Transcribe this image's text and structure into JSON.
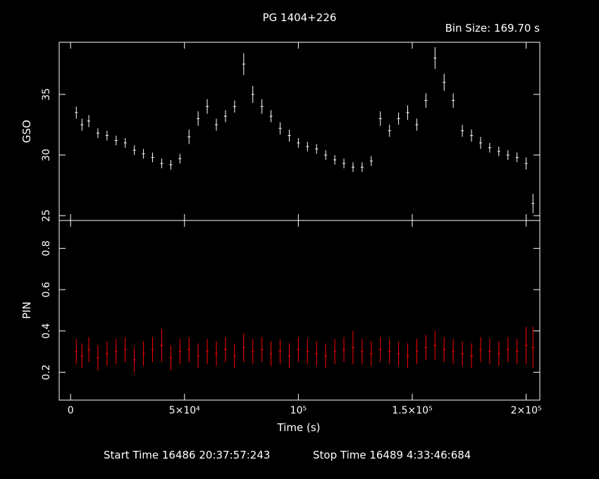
{
  "chart_data": {
    "type": "scatter",
    "title": "PG 1404+226",
    "bin_size_label": "Bin Size: 169.70 s",
    "xlabel": "Time (s)",
    "footer": {
      "start": "Start Time 16486 20:37:57:243",
      "stop": "Stop Time 16489  4:33:46:684"
    },
    "xlim": [
      -5000,
      206000
    ],
    "x_ticks": [
      {
        "value": 0,
        "label": "0"
      },
      {
        "value": 50000,
        "label": "5×10⁴"
      },
      {
        "value": 100000,
        "label": "10⁵"
      },
      {
        "value": 150000,
        "label": "1.5×10⁵"
      },
      {
        "value": 200000,
        "label": "2×10⁵"
      }
    ],
    "panels": [
      {
        "name": "GSO",
        "ylabel": "GSO",
        "color": "#ffffff",
        "ylim": [
          24.6,
          39.3
        ],
        "y_ticks": [
          25,
          30,
          35
        ],
        "series": {
          "x": [
            2500,
            5000,
            8000,
            12000,
            16000,
            20000,
            24000,
            28000,
            32000,
            36000,
            40000,
            44000,
            48000,
            52000,
            56000,
            60000,
            64000,
            68000,
            72000,
            76000,
            80000,
            84000,
            88000,
            92000,
            96000,
            100000,
            104000,
            108000,
            112000,
            116000,
            120000,
            124000,
            128000,
            132000,
            136000,
            140000,
            144000,
            148000,
            152000,
            156000,
            160000,
            164000,
            168000,
            172000,
            176000,
            180000,
            184000,
            188000,
            192000,
            196000,
            200000,
            203000
          ],
          "y": [
            33.5,
            32.5,
            32.8,
            31.8,
            31.6,
            31.2,
            31.0,
            30.4,
            30.1,
            29.8,
            29.3,
            29.2,
            29.7,
            31.5,
            33.0,
            34.0,
            32.5,
            33.2,
            34.0,
            37.5,
            35.0,
            34.0,
            33.2,
            32.2,
            31.6,
            31.0,
            30.7,
            30.5,
            30.0,
            29.6,
            29.3,
            29.0,
            29.0,
            29.5,
            33.0,
            32.0,
            33.0,
            33.5,
            32.5,
            34.5,
            38.0,
            36.0,
            34.5,
            32.0,
            31.6,
            31.0,
            30.6,
            30.3,
            30.0,
            29.8,
            29.3,
            26.0
          ],
          "err": [
            0.5,
            0.5,
            0.5,
            0.4,
            0.4,
            0.4,
            0.4,
            0.4,
            0.4,
            0.4,
            0.4,
            0.4,
            0.4,
            0.6,
            0.6,
            0.6,
            0.5,
            0.5,
            0.5,
            0.9,
            0.7,
            0.6,
            0.5,
            0.5,
            0.5,
            0.4,
            0.4,
            0.4,
            0.4,
            0.4,
            0.4,
            0.4,
            0.4,
            0.4,
            0.6,
            0.5,
            0.5,
            0.6,
            0.5,
            0.6,
            0.9,
            0.7,
            0.6,
            0.5,
            0.5,
            0.5,
            0.4,
            0.4,
            0.4,
            0.4,
            0.5,
            0.8
          ]
        }
      },
      {
        "name": "PIN",
        "ylabel": "PIN",
        "color": "#ff0000",
        "ylim": [
          0.065,
          0.935
        ],
        "y_ticks": [
          0.2,
          0.4,
          0.6,
          0.8
        ],
        "series": {
          "x": [
            2500,
            5000,
            8000,
            12000,
            16000,
            20000,
            24000,
            28000,
            32000,
            36000,
            40000,
            44000,
            48000,
            52000,
            56000,
            60000,
            64000,
            68000,
            72000,
            76000,
            80000,
            84000,
            88000,
            92000,
            96000,
            100000,
            104000,
            108000,
            112000,
            116000,
            120000,
            124000,
            128000,
            132000,
            136000,
            140000,
            144000,
            148000,
            152000,
            156000,
            160000,
            164000,
            168000,
            172000,
            176000,
            180000,
            184000,
            188000,
            192000,
            196000,
            200000,
            203000
          ],
          "y": [
            0.3,
            0.28,
            0.31,
            0.27,
            0.29,
            0.3,
            0.31,
            0.26,
            0.29,
            0.31,
            0.33,
            0.27,
            0.3,
            0.31,
            0.28,
            0.3,
            0.29,
            0.31,
            0.28,
            0.32,
            0.3,
            0.31,
            0.29,
            0.3,
            0.28,
            0.31,
            0.3,
            0.29,
            0.28,
            0.3,
            0.31,
            0.32,
            0.3,
            0.29,
            0.31,
            0.3,
            0.29,
            0.28,
            0.3,
            0.32,
            0.33,
            0.31,
            0.3,
            0.29,
            0.28,
            0.31,
            0.3,
            0.29,
            0.31,
            0.3,
            0.33,
            0.32
          ],
          "err": [
            0.06,
            0.06,
            0.06,
            0.06,
            0.06,
            0.06,
            0.06,
            0.06,
            0.06,
            0.06,
            0.08,
            0.06,
            0.06,
            0.06,
            0.06,
            0.06,
            0.06,
            0.06,
            0.06,
            0.07,
            0.06,
            0.06,
            0.06,
            0.06,
            0.06,
            0.06,
            0.06,
            0.06,
            0.06,
            0.06,
            0.06,
            0.08,
            0.06,
            0.06,
            0.06,
            0.06,
            0.06,
            0.06,
            0.06,
            0.06,
            0.07,
            0.06,
            0.06,
            0.06,
            0.06,
            0.06,
            0.06,
            0.06,
            0.06,
            0.06,
            0.09,
            0.1
          ]
        }
      }
    ]
  }
}
